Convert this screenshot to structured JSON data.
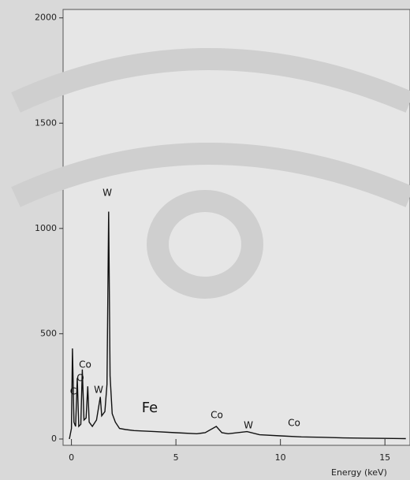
{
  "chart_data": {
    "type": "line",
    "x_label": "Energy (keV)",
    "xlim": [
      -0.4,
      16.2
    ],
    "ylim": [
      -30,
      2040
    ],
    "xticks": [
      0,
      5,
      10,
      15
    ],
    "yticks": [
      0,
      500,
      1000,
      1500,
      2000
    ],
    "series": [
      {
        "color": "#111111",
        "x": [
          -0.1,
          0.0,
          0.05,
          0.12,
          0.2,
          0.28,
          0.35,
          0.45,
          0.52,
          0.6,
          0.7,
          0.78,
          0.85,
          1.0,
          1.2,
          1.38,
          1.45,
          1.6,
          1.7,
          1.78,
          1.85,
          1.95,
          2.1,
          2.3,
          2.6,
          3,
          4,
          5,
          6,
          6.4,
          6.93,
          7.2,
          7.5,
          8.4,
          9,
          10,
          11,
          12,
          13,
          14,
          15,
          16
        ],
        "values": [
          0,
          50,
          430,
          80,
          60,
          290,
          60,
          70,
          330,
          90,
          100,
          250,
          80,
          60,
          90,
          200,
          110,
          130,
          260,
          1080,
          300,
          120,
          80,
          50,
          45,
          40,
          35,
          30,
          25,
          30,
          60,
          30,
          25,
          35,
          20,
          15,
          10,
          8,
          5,
          4,
          3,
          2
        ]
      }
    ],
    "annotations": [
      "C",
      "O",
      "Co",
      "W",
      "W",
      "Fe",
      "Co",
      "W",
      "Co"
    ]
  }
}
